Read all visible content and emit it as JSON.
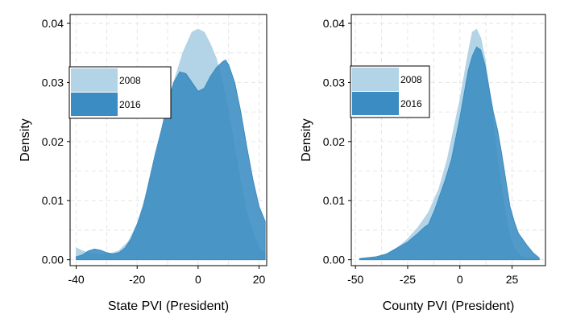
{
  "chart_data": [
    {
      "type": "area",
      "xlabel": "State PVI (President)",
      "ylabel": "Density",
      "xlim": [
        -42,
        22.5
      ],
      "ylim": [
        -0.001,
        0.0415
      ],
      "xticks": [
        -40,
        -20,
        0,
        20
      ],
      "yticks": [
        0.0,
        0.01,
        0.02,
        0.03,
        0.04
      ],
      "ytick_labels": [
        "0.00",
        "0.01",
        "0.02",
        "0.03",
        "0.04"
      ],
      "grid": true,
      "legend_position": "top-left",
      "series": [
        {
          "name": "2008",
          "color": "#b3d4e6",
          "x": [
            -40,
            -38,
            -35,
            -32,
            -29,
            -26,
            -23,
            -20,
            -17,
            -14,
            -11,
            -8,
            -5,
            -2,
            0,
            2,
            4,
            6,
            8,
            10,
            12,
            14,
            16,
            18,
            20,
            22
          ],
          "y": [
            0.002,
            0.0015,
            0.001,
            0.0008,
            0.001,
            0.0015,
            0.003,
            0.006,
            0.011,
            0.017,
            0.024,
            0.03,
            0.035,
            0.0385,
            0.039,
            0.0385,
            0.0365,
            0.034,
            0.03,
            0.025,
            0.019,
            0.013,
            0.008,
            0.0045,
            0.002,
            0.001
          ]
        },
        {
          "name": "2016",
          "color": "#3a8cc2",
          "x": [
            -40,
            -38,
            -36,
            -34,
            -32,
            -30,
            -28,
            -26,
            -24,
            -22,
            -20,
            -18,
            -16,
            -14,
            -12,
            -10,
            -8,
            -6,
            -4,
            -2,
            0,
            2,
            4,
            6,
            8,
            9,
            10,
            12,
            14,
            16,
            18,
            20,
            22
          ],
          "y": [
            0.0005,
            0.0008,
            0.0015,
            0.0018,
            0.0016,
            0.0012,
            0.001,
            0.0012,
            0.002,
            0.0035,
            0.006,
            0.009,
            0.0135,
            0.018,
            0.022,
            0.0265,
            0.03,
            0.0318,
            0.0315,
            0.03,
            0.0285,
            0.029,
            0.031,
            0.0325,
            0.0335,
            0.0338,
            0.033,
            0.03,
            0.025,
            0.019,
            0.0135,
            0.009,
            0.0065
          ]
        }
      ]
    },
    {
      "type": "area",
      "xlabel": "County PVI (President)",
      "ylabel": "Density",
      "xlim": [
        -52,
        41
      ],
      "ylim": [
        -0.001,
        0.0415
      ],
      "xticks": [
        -50,
        -25,
        0,
        25
      ],
      "yticks": [
        0.0,
        0.01,
        0.02,
        0.03,
        0.04
      ],
      "ytick_labels": [
        "0.00",
        "0.01",
        "0.02",
        "0.03",
        "0.04"
      ],
      "grid": true,
      "legend_position": "top-left",
      "series": [
        {
          "name": "2008",
          "color": "#b3d4e6",
          "x": [
            -48,
            -40,
            -35,
            -30,
            -25,
            -20,
            -15,
            -10,
            -6,
            -3,
            0,
            2,
            4,
            6,
            8,
            10,
            12,
            14,
            16,
            18,
            20,
            22,
            24,
            26,
            28,
            30,
            35,
            38
          ],
          "y": [
            0.0002,
            0.0005,
            0.001,
            0.002,
            0.0035,
            0.0055,
            0.008,
            0.012,
            0.017,
            0.022,
            0.027,
            0.031,
            0.035,
            0.0385,
            0.039,
            0.0375,
            0.034,
            0.029,
            0.023,
            0.017,
            0.012,
            0.0075,
            0.004,
            0.002,
            0.001,
            0.0005,
            0.0002,
            0.0001
          ]
        },
        {
          "name": "2016",
          "color": "#3a8cc2",
          "x": [
            -48,
            -40,
            -35,
            -30,
            -25,
            -20,
            -17,
            -15,
            -12,
            -10,
            -7,
            -4,
            -2,
            0,
            2,
            4,
            6,
            8,
            10,
            12,
            14,
            16,
            18,
            20,
            22,
            24,
            26,
            28,
            30,
            32,
            35,
            38
          ],
          "y": [
            0.0002,
            0.0005,
            0.001,
            0.002,
            0.003,
            0.0045,
            0.0055,
            0.006,
            0.0085,
            0.0105,
            0.0135,
            0.017,
            0.0205,
            0.024,
            0.028,
            0.032,
            0.0345,
            0.036,
            0.0355,
            0.033,
            0.029,
            0.025,
            0.022,
            0.018,
            0.0135,
            0.009,
            0.0065,
            0.0045,
            0.0035,
            0.0025,
            0.0012,
            0.0003
          ]
        }
      ]
    }
  ]
}
